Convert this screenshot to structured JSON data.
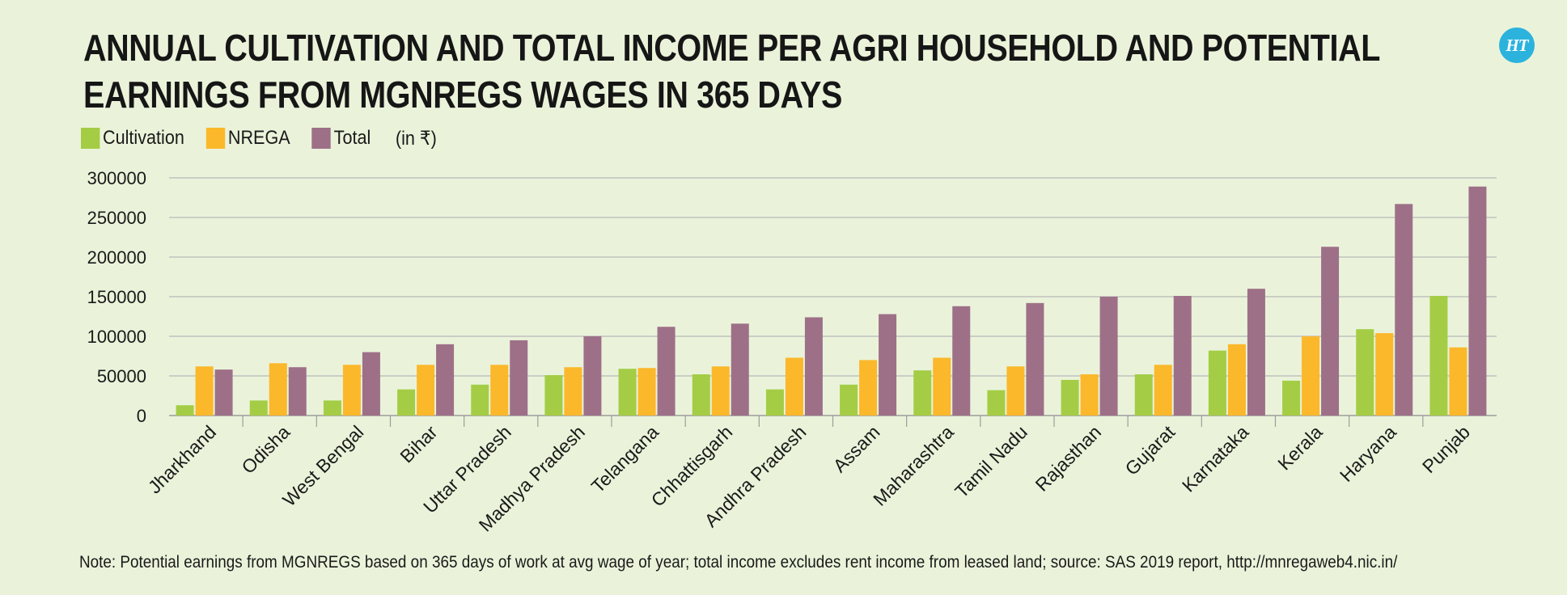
{
  "title_lines": [
    "ANNUAL CULTIVATION AND TOTAL INCOME PER AGRI HOUSEHOLD AND POTENTIAL",
    "EARNINGS FROM MGNREGS WAGES IN 365 DAYS"
  ],
  "logo_text": "HT",
  "legend": {
    "items": [
      {
        "label": "Cultivation",
        "color": "#a4cd45"
      },
      {
        "label": "NREGA",
        "color": "#fbb82b"
      },
      {
        "label": "Total",
        "color": "#9e7088"
      }
    ],
    "unit": "(in ₹)"
  },
  "footnote": "Note: Potential earnings from MGNREGS based on 365 days of work at avg wage of year; total income excludes rent income from leased land; source: SAS 2019 report, http://mnregaweb4.nic.in/",
  "chart_data": {
    "type": "bar",
    "categories": [
      "Jharkhand",
      "Odisha",
      "West Bengal",
      "Bihar",
      "Uttar Pradesh",
      "Madhya Pradesh",
      "Telangana",
      "Chhattisgarh",
      "Andhra Pradesh",
      "Assam",
      "Maharashtra",
      "Tamil Nadu",
      "Rajasthan",
      "Gujarat",
      "Karnataka",
      "Kerala",
      "Haryana",
      "Punjab"
    ],
    "series": [
      {
        "name": "Cultivation",
        "color": "#a4cd45",
        "values": [
          13000,
          19000,
          19000,
          33000,
          39000,
          51000,
          59000,
          52000,
          33000,
          39000,
          57000,
          32000,
          45000,
          52000,
          82000,
          44000,
          109000,
          151000
        ]
      },
      {
        "name": "NREGA",
        "color": "#fbb82b",
        "values": [
          62000,
          66000,
          64000,
          64000,
          64000,
          61000,
          60000,
          62000,
          73000,
          70000,
          73000,
          62000,
          52000,
          64000,
          90000,
          100000,
          104000,
          86000
        ]
      },
      {
        "name": "Total",
        "color": "#9e7088",
        "values": [
          58000,
          61000,
          80000,
          90000,
          95000,
          100000,
          112000,
          116000,
          124000,
          128000,
          138000,
          142000,
          150000,
          151000,
          160000,
          213000,
          267000,
          289000
        ]
      }
    ],
    "yticks": [
      0,
      50000,
      100000,
      150000,
      200000,
      250000,
      300000
    ],
    "ylim": [
      0,
      300000
    ],
    "grid": true,
    "legend_position": "top-left"
  }
}
